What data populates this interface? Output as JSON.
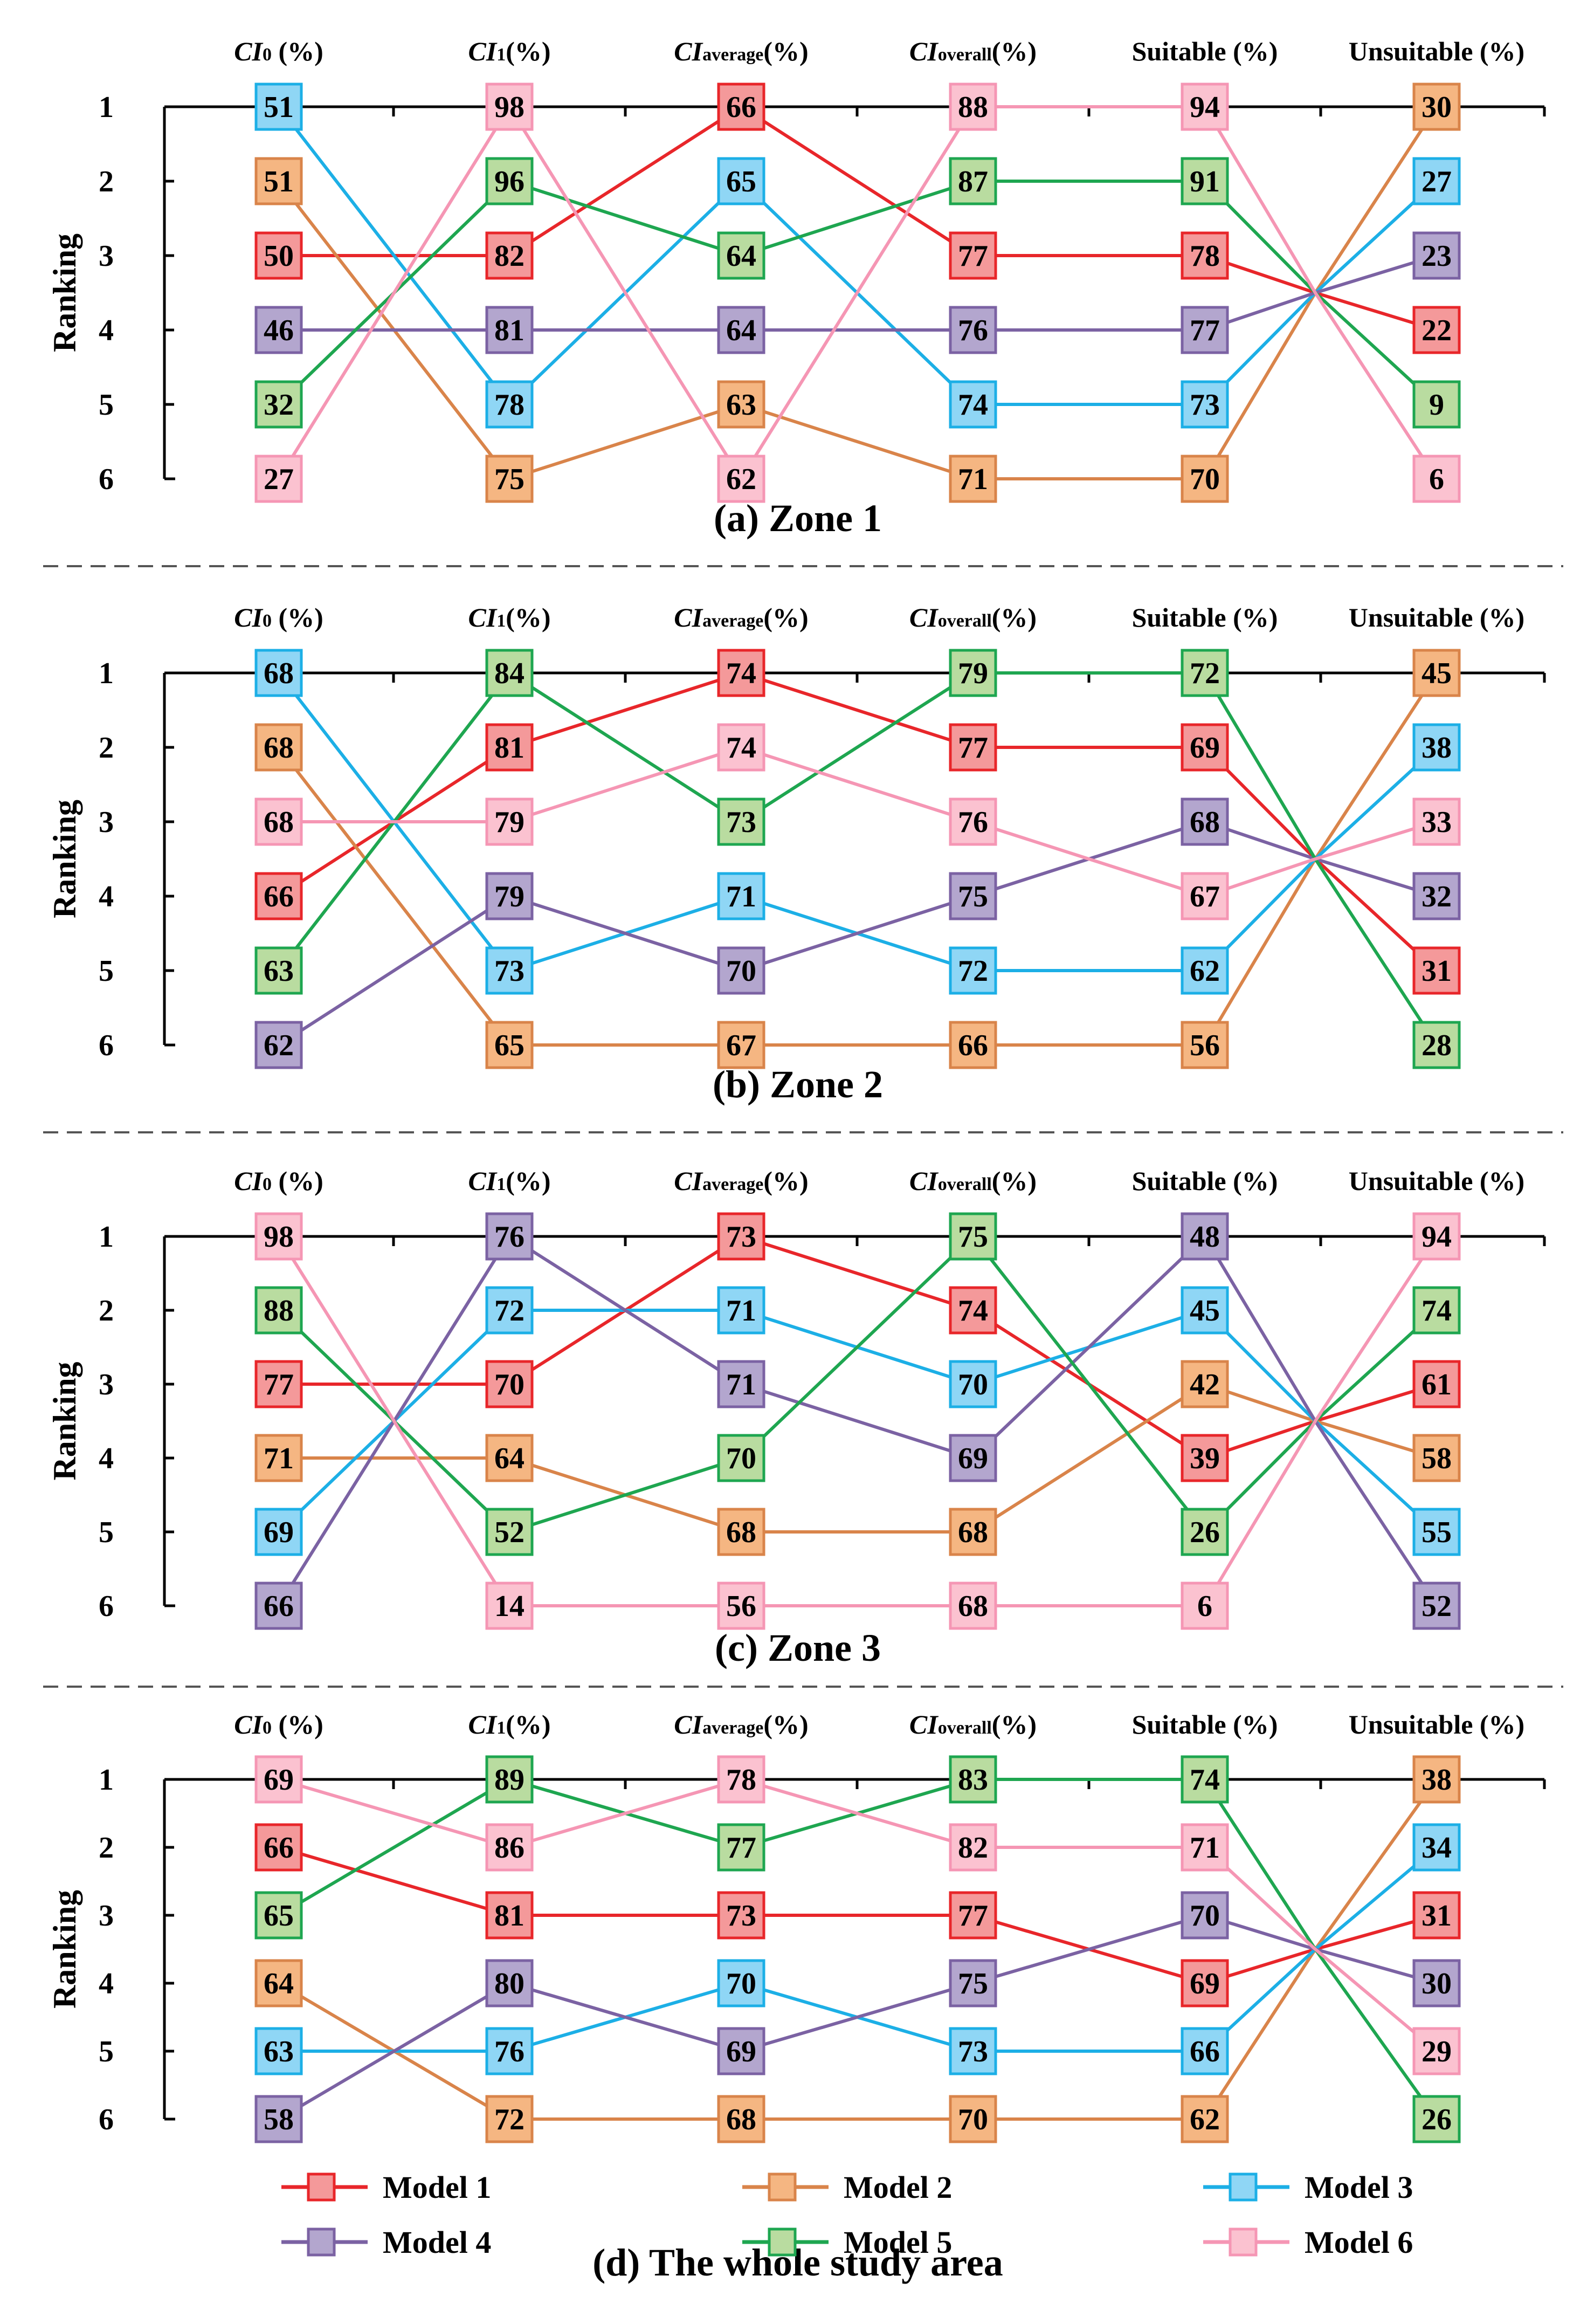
{
  "chart_data": {
    "type": "line",
    "description_type": "bump chart of model rankings",
    "ylabel": "Ranking",
    "columns": [
      {
        "main": "CI",
        "sub": "0",
        "suffix": " (%)"
      },
      {
        "main": "CI",
        "sub": "1",
        "suffix": "(%)"
      },
      {
        "main": "CI",
        "sub": "average",
        "suffix": "(%)"
      },
      {
        "main": "CI",
        "sub": "overall",
        "suffix": "(%)"
      },
      {
        "main": "",
        "sub": "",
        "suffix": "Suitable (%)"
      },
      {
        "main": "",
        "sub": "",
        "suffix": "Unsuitable (%)"
      }
    ],
    "rank_labels": [
      "1",
      "2",
      "3",
      "4",
      "5",
      "6"
    ],
    "models": [
      {
        "name": "Model 1",
        "line": "#e8262a",
        "face": "#f4999a",
        "edge": "#e8262a"
      },
      {
        "name": "Model 2",
        "line": "#d9844a",
        "face": "#f5b682",
        "edge": "#d9844a"
      },
      {
        "name": "Model 3",
        "line": "#1cafe6",
        "face": "#8fd6f5",
        "edge": "#1cafe6"
      },
      {
        "name": "Model 4",
        "line": "#7b62a3",
        "face": "#b3a6ce",
        "edge": "#7b62a3"
      },
      {
        "name": "Model 5",
        "line": "#1ea650",
        "face": "#b9dca0",
        "edge": "#1ea650"
      },
      {
        "name": "Model 6",
        "line": "#f596b4",
        "face": "#fbc2d0",
        "edge": "#f596b4"
      }
    ],
    "panels": [
      {
        "title": "(a) Zone 1",
        "models": [
          {
            "ranks": [
              3,
              3,
              1,
              3,
              3,
              4
            ],
            "values": [
              50,
              82,
              66,
              77,
              78,
              22
            ]
          },
          {
            "ranks": [
              2,
              6,
              5,
              6,
              6,
              1
            ],
            "values": [
              51,
              75,
              63,
              71,
              70,
              30
            ]
          },
          {
            "ranks": [
              1,
              5,
              2,
              5,
              5,
              2
            ],
            "values": [
              51,
              78,
              65,
              74,
              73,
              27
            ]
          },
          {
            "ranks": [
              4,
              4,
              4,
              4,
              4,
              3
            ],
            "values": [
              46,
              81,
              64,
              76,
              77,
              23
            ]
          },
          {
            "ranks": [
              5,
              2,
              3,
              2,
              2,
              5
            ],
            "values": [
              32,
              96,
              64,
              87,
              91,
              9
            ]
          },
          {
            "ranks": [
              6,
              1,
              6,
              1,
              1,
              6
            ],
            "values": [
              27,
              98,
              62,
              88,
              94,
              6
            ]
          }
        ]
      },
      {
        "title": "(b) Zone 2",
        "models": [
          {
            "ranks": [
              4,
              2,
              1,
              2,
              2,
              5
            ],
            "values": [
              66,
              81,
              74,
              77,
              69,
              31
            ]
          },
          {
            "ranks": [
              2,
              6,
              6,
              6,
              6,
              1
            ],
            "values": [
              68,
              65,
              67,
              66,
              56,
              45
            ]
          },
          {
            "ranks": [
              1,
              5,
              4,
              5,
              5,
              2
            ],
            "values": [
              68,
              73,
              71,
              72,
              62,
              38
            ]
          },
          {
            "ranks": [
              6,
              4,
              5,
              4,
              3,
              4
            ],
            "values": [
              62,
              79,
              70,
              75,
              68,
              32
            ]
          },
          {
            "ranks": [
              5,
              1,
              3,
              1,
              1,
              6
            ],
            "values": [
              63,
              84,
              73,
              79,
              72,
              28
            ]
          },
          {
            "ranks": [
              3,
              3,
              2,
              3,
              4,
              3
            ],
            "values": [
              68,
              79,
              74,
              76,
              67,
              33
            ]
          }
        ]
      },
      {
        "title": "(c) Zone 3",
        "models": [
          {
            "ranks": [
              3,
              3,
              1,
              2,
              4,
              3
            ],
            "values": [
              77,
              70,
              73,
              74,
              39,
              61
            ]
          },
          {
            "ranks": [
              4,
              4,
              5,
              5,
              3,
              4
            ],
            "values": [
              71,
              64,
              68,
              68,
              42,
              58
            ]
          },
          {
            "ranks": [
              5,
              2,
              2,
              3,
              2,
              5
            ],
            "values": [
              69,
              72,
              71,
              70,
              45,
              55
            ]
          },
          {
            "ranks": [
              6,
              1,
              3,
              4,
              1,
              6
            ],
            "values": [
              66,
              76,
              71,
              69,
              48,
              52
            ]
          },
          {
            "ranks": [
              2,
              5,
              4,
              1,
              5,
              2
            ],
            "values": [
              88,
              52,
              70,
              75,
              26,
              74
            ]
          },
          {
            "ranks": [
              1,
              6,
              6,
              6,
              6,
              1
            ],
            "values": [
              98,
              14,
              56,
              68,
              6,
              94
            ]
          }
        ]
      },
      {
        "title": "(d) The whole study area",
        "models": [
          {
            "ranks": [
              2,
              3,
              3,
              3,
              4,
              3
            ],
            "values": [
              66,
              81,
              73,
              77,
              69,
              31
            ]
          },
          {
            "ranks": [
              4,
              6,
              6,
              6,
              6,
              1
            ],
            "values": [
              64,
              72,
              68,
              70,
              62,
              38
            ]
          },
          {
            "ranks": [
              5,
              5,
              4,
              5,
              5,
              2
            ],
            "values": [
              63,
              76,
              70,
              73,
              66,
              34
            ]
          },
          {
            "ranks": [
              6,
              4,
              5,
              4,
              3,
              4
            ],
            "values": [
              58,
              80,
              69,
              75,
              70,
              30
            ]
          },
          {
            "ranks": [
              3,
              1,
              2,
              1,
              1,
              6
            ],
            "values": [
              65,
              89,
              77,
              83,
              74,
              26
            ]
          },
          {
            "ranks": [
              1,
              2,
              1,
              2,
              2,
              5
            ],
            "values": [
              69,
              86,
              78,
              82,
              71,
              29
            ]
          }
        ]
      }
    ]
  }
}
